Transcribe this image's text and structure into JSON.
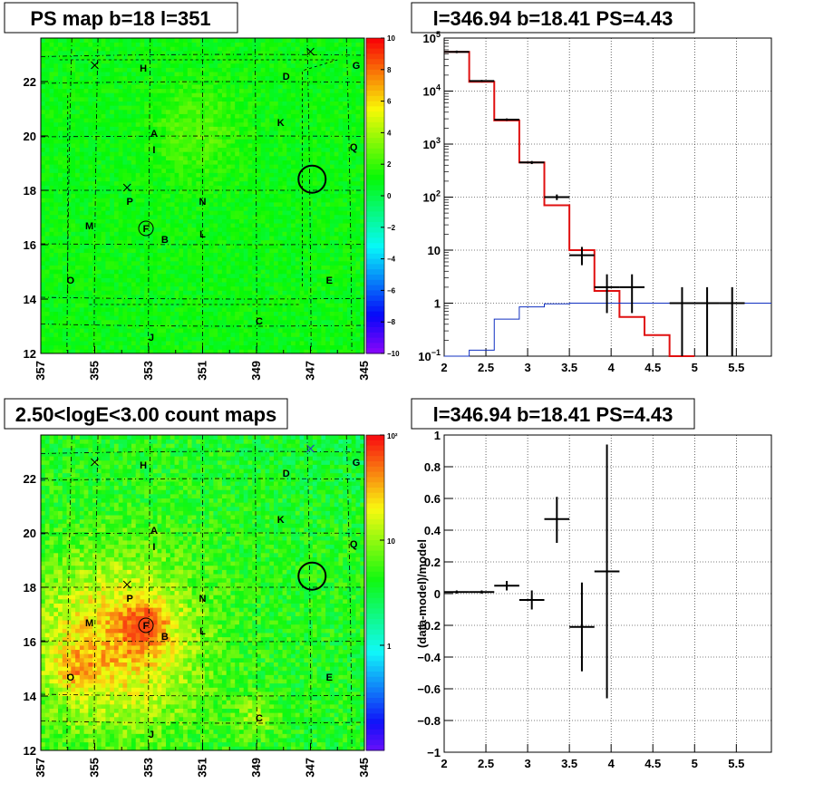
{
  "panels": {
    "ps_map": {
      "title": "PS map b=18 l=351",
      "x_ticks": [
        "357",
        "355",
        "353",
        "351",
        "349",
        "347",
        "345"
      ],
      "y_ticks": [
        "12",
        "14",
        "16",
        "18",
        "20",
        "22"
      ],
      "colorbar_ticks": [
        "10",
        "8",
        "6",
        "4",
        "2",
        "0",
        "−2",
        "−4",
        "−6",
        "−8",
        "−10"
      ],
      "sources": [
        {
          "label": "H",
          "l": 353.2,
          "b": 22.5
        },
        {
          "label": "D",
          "l": 347.9,
          "b": 22.2
        },
        {
          "label": "G",
          "l": 345.3,
          "b": 22.6
        },
        {
          "label": "K",
          "l": 348.1,
          "b": 20.5
        },
        {
          "label": "A",
          "l": 352.8,
          "b": 20.1
        },
        {
          "label": "I",
          "l": 352.8,
          "b": 19.5
        },
        {
          "label": "Q",
          "l": 345.4,
          "b": 19.6
        },
        {
          "label": "N",
          "l": 351.0,
          "b": 17.6
        },
        {
          "label": "P",
          "l": 353.7,
          "b": 17.6
        },
        {
          "label": "F",
          "l": 353.1,
          "b": 16.6
        },
        {
          "label": "M",
          "l": 355.2,
          "b": 16.7
        },
        {
          "label": "B",
          "l": 352.4,
          "b": 16.2
        },
        {
          "label": "L",
          "l": 351.0,
          "b": 16.4
        },
        {
          "label": "O",
          "l": 355.9,
          "b": 14.7
        },
        {
          "label": "E",
          "l": 346.3,
          "b": 14.7
        },
        {
          "label": "C",
          "l": 348.9,
          "b": 13.2
        },
        {
          "label": "J",
          "l": 352.9,
          "b": 12.6
        }
      ],
      "crosses": [
        {
          "l": 355.0,
          "b": 22.6
        },
        {
          "l": 353.8,
          "b": 18.1
        },
        {
          "l": 347.0,
          "b": 23.1
        }
      ],
      "circles": [
        {
          "l": 353.1,
          "b": 16.6,
          "big": false
        },
        {
          "l": 346.94,
          "b": 18.41,
          "big": true
        }
      ]
    },
    "count_map": {
      "title": "2.50<logE<3.00 count maps",
      "colorbar_ticks": [
        "10²",
        "10",
        "1"
      ]
    },
    "spectrum": {
      "title": "l=346.94 b=18.41 PS=4.43",
      "x_ticks": [
        "2",
        "2.5",
        "3",
        "3.5",
        "4",
        "4.5",
        "5",
        "5.5"
      ],
      "y_ticks": [
        {
          "mant": "10",
          "exp": "5",
          "v": 5
        },
        {
          "mant": "10",
          "exp": "4",
          "v": 4
        },
        {
          "mant": "10",
          "exp": "3",
          "v": 3
        },
        {
          "mant": "10",
          "exp": "2",
          "v": 2
        },
        {
          "mant": "10",
          "exp": "",
          "v": 1
        },
        {
          "mant": "1",
          "exp": "",
          "v": 0
        },
        {
          "mant": "10",
          "exp": "−1",
          "v": -1
        }
      ]
    },
    "residual": {
      "title": "l=346.94 b=18.41 PS=4.43",
      "ylabel": "(data-model)/model",
      "x_ticks": [
        "2",
        "2.5",
        "3",
        "3.5",
        "4",
        "4.5",
        "5",
        "5.5"
      ],
      "y_ticks": [
        "1",
        "0.8",
        "0.6",
        "0.4",
        "0.2",
        "0",
        "−0.2",
        "−0.4",
        "−0.6",
        "−0.8",
        "−1"
      ]
    }
  },
  "chart_data": [
    {
      "type": "heatmap",
      "title": "PS map b=18 l=351",
      "xlim": [
        357,
        345
      ],
      "ylim": [
        12,
        23.6
      ],
      "zlim": [
        -10,
        10
      ],
      "description_values": "near-uniform TS values around 0–2 (green)"
    },
    {
      "type": "heatmap",
      "title": "2.50<logE<3.00 count maps",
      "xlim": [
        357,
        345
      ],
      "ylim": [
        12,
        23.6
      ],
      "zlim_log": [
        0.1,
        100
      ],
      "hotspots": [
        {
          "l": 353.1,
          "b": 16.6,
          "level": "high"
        },
        {
          "l": 349.0,
          "b": 13.3,
          "level": "medium"
        },
        {
          "l": 355.7,
          "b": 14.9,
          "level": "medium"
        }
      ]
    },
    {
      "type": "line",
      "title": "l=346.94 b=18.41 PS=4.43",
      "xlim": [
        2,
        5.92
      ],
      "ylim_log10": [
        -1,
        5
      ],
      "series": [
        {
          "color": "#e01010",
          "style": "step",
          "bins": [
            {
              "x0": 2.0,
              "x1": 2.3,
              "y": 55000
            },
            {
              "x0": 2.3,
              "x1": 2.6,
              "y": 15000
            },
            {
              "x0": 2.6,
              "x1": 2.9,
              "y": 2800
            },
            {
              "x0": 2.9,
              "x1": 3.2,
              "y": 450
            },
            {
              "x0": 3.2,
              "x1": 3.5,
              "y": 70
            },
            {
              "x0": 3.5,
              "x1": 3.8,
              "y": 10
            },
            {
              "x0": 3.8,
              "x1": 4.1,
              "y": 1.7
            },
            {
              "x0": 4.1,
              "x1": 4.4,
              "y": 0.55
            },
            {
              "x0": 4.4,
              "x1": 4.7,
              "y": 0.25
            },
            {
              "x0": 4.7,
              "x1": 5.0,
              "y": 0.08
            }
          ]
        },
        {
          "color": "#1030c0",
          "style": "step",
          "bins": [
            {
              "x0": 2.0,
              "x1": 2.3,
              "y": 0.1
            },
            {
              "x0": 2.3,
              "x1": 2.6,
              "y": 0.13
            },
            {
              "x0": 2.6,
              "x1": 2.9,
              "y": 0.5
            },
            {
              "x0": 2.9,
              "x1": 3.2,
              "y": 0.85
            },
            {
              "x0": 3.2,
              "x1": 3.5,
              "y": 0.97
            },
            {
              "x0": 3.5,
              "x1": 3.8,
              "y": 1.0
            },
            {
              "x0": 3.8,
              "x1": 5.92,
              "y": 1.0
            }
          ]
        },
        {
          "color": "#000000",
          "style": "errorbars",
          "points": [
            {
              "x": 2.15,
              "xerr": 0.15,
              "y": 55000,
              "ylo": 52000,
              "yhi": 58000
            },
            {
              "x": 2.45,
              "xerr": 0.15,
              "y": 15500,
              "ylo": 14800,
              "yhi": 16200
            },
            {
              "x": 2.75,
              "xerr": 0.15,
              "y": 2900,
              "ylo": 2750,
              "yhi": 3050
            },
            {
              "x": 3.05,
              "xerr": 0.15,
              "y": 450,
              "ylo": 420,
              "yhi": 480
            },
            {
              "x": 3.35,
              "xerr": 0.15,
              "y": 100,
              "ylo": 88,
              "yhi": 112
            },
            {
              "x": 3.65,
              "xerr": 0.15,
              "y": 8,
              "ylo": 5.2,
              "yhi": 11.5
            },
            {
              "x": 3.95,
              "xerr": 0.15,
              "y": 2,
              "ylo": 0.65,
              "yhi": 3.5
            },
            {
              "x": 4.25,
              "xerr": 0.15,
              "y": 2,
              "ylo": 0.65,
              "yhi": 3.5
            },
            {
              "x": 4.85,
              "xerr": 0.15,
              "y": 1,
              "ylo": 0.1,
              "yhi": 2
            },
            {
              "x": 5.15,
              "xerr": 0.15,
              "y": 1,
              "ylo": 0.1,
              "yhi": 2
            },
            {
              "x": 5.45,
              "xerr": 0.15,
              "y": 1,
              "ylo": 0.1,
              "yhi": 2
            }
          ]
        }
      ]
    },
    {
      "type": "scatter",
      "title": "l=346.94 b=18.41 PS=4.43",
      "ylabel": "(data-model)/model",
      "xlim": [
        2,
        5.92
      ],
      "ylim": [
        -1,
        1
      ],
      "points": [
        {
          "x": 2.15,
          "xerr": 0.15,
          "y": 0.01,
          "ylo": 0.0,
          "yhi": 0.02
        },
        {
          "x": 2.45,
          "xerr": 0.15,
          "y": 0.01,
          "ylo": 0.0,
          "yhi": 0.02
        },
        {
          "x": 2.75,
          "xerr": 0.15,
          "y": 0.05,
          "ylo": 0.02,
          "yhi": 0.08
        },
        {
          "x": 3.05,
          "xerr": 0.15,
          "y": -0.04,
          "ylo": -0.1,
          "yhi": 0.02
        },
        {
          "x": 3.35,
          "xerr": 0.15,
          "y": 0.47,
          "ylo": 0.32,
          "yhi": 0.61
        },
        {
          "x": 3.65,
          "xerr": 0.15,
          "y": -0.21,
          "ylo": -0.49,
          "yhi": 0.07
        },
        {
          "x": 3.95,
          "xerr": 0.15,
          "y": 0.14,
          "ylo": -0.66,
          "yhi": 0.94
        }
      ]
    }
  ]
}
